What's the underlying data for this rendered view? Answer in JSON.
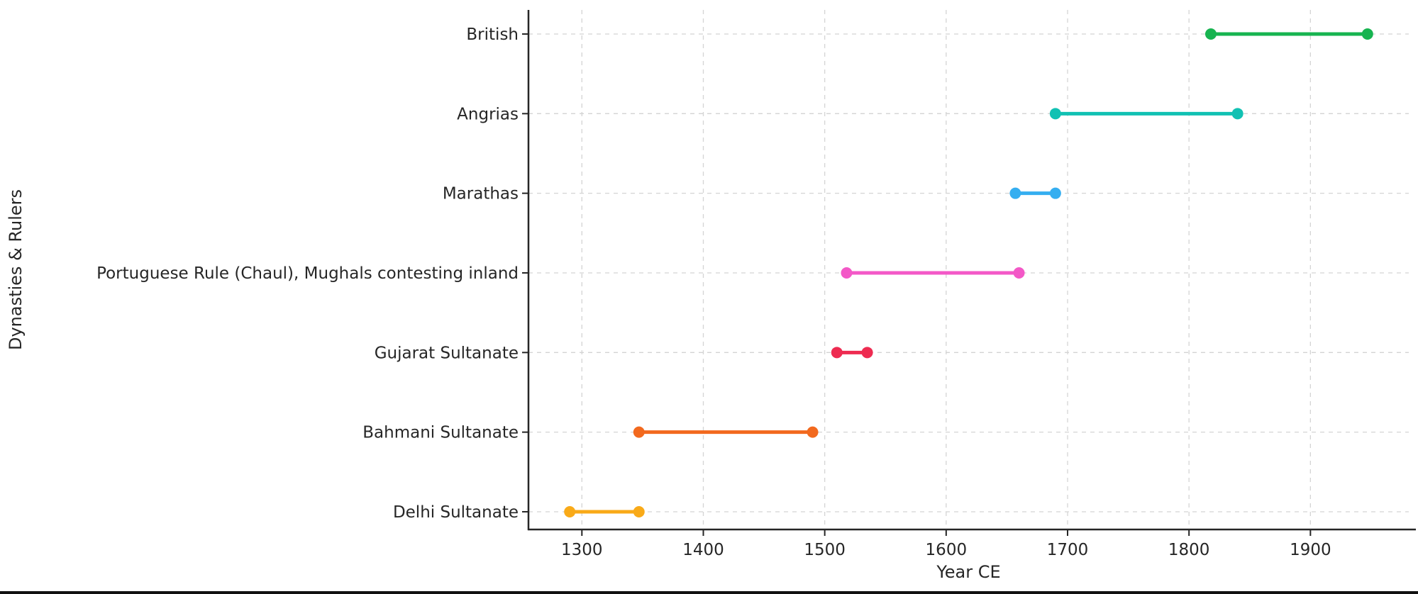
{
  "page": {
    "background": "#ffffff",
    "bottom_border_color": "#111111"
  },
  "chart_data": {
    "type": "bar",
    "subtype": "dumbbell-range-timeline",
    "title": "",
    "xlabel": "Year CE",
    "ylabel": "Dynasties & Rulers",
    "categories_top_to_bottom": [
      "British",
      "Angrias",
      "Marathas",
      "Portuguese Rule (Chaul), Mughals contesting inland",
      "Gujarat Sultanate",
      "Bahmani Sultanate",
      "Delhi Sultanate"
    ],
    "series": [
      {
        "name": "British",
        "start": 1818,
        "end": 1947,
        "color": "#17b450"
      },
      {
        "name": "Angrias",
        "start": 1690,
        "end": 1840,
        "color": "#11c1b3"
      },
      {
        "name": "Marathas",
        "start": 1657,
        "end": 1690,
        "color": "#35aef0"
      },
      {
        "name": "Portuguese Rule (Chaul), Mughals contesting inland",
        "start": 1518,
        "end": 1660,
        "color": "#f358c7"
      },
      {
        "name": "Gujarat Sultanate",
        "start": 1510,
        "end": 1535,
        "color": "#ee2b51"
      },
      {
        "name": "Bahmani Sultanate",
        "start": 1347,
        "end": 1490,
        "color": "#f2691e"
      },
      {
        "name": "Delhi Sultanate",
        "start": 1290,
        "end": 1347,
        "color": "#f9aa18"
      }
    ],
    "x_ticks": [
      1300,
      1400,
      1500,
      1600,
      1700,
      1800,
      1900
    ],
    "xlim": [
      1256,
      1981
    ],
    "grid": {
      "show": true,
      "style": "dashed",
      "color": "#d4d4d4"
    },
    "legend": "none",
    "axis_color": "#262626",
    "tick_label_color": "#262626",
    "marker_radius": 8,
    "line_width": 5
  }
}
